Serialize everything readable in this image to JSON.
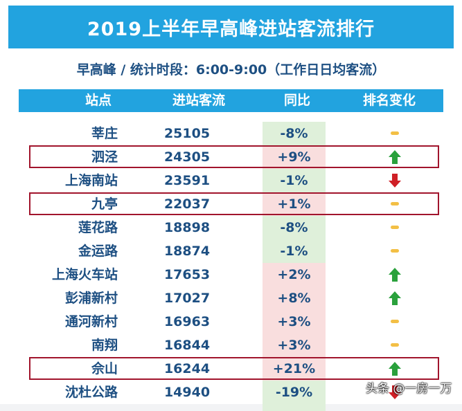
{
  "title": "2019上半年早高峰进站客流排行",
  "subtitle": "早高峰 / 统计时段：6:00-9:00（工作日日均客流）",
  "watermark": "头条 @一房一万",
  "colors": {
    "header_blue": "#22a3df",
    "text_navy": "#1d4f82",
    "increase_bg": "#f9dede",
    "decrease_bg": "#dff0da",
    "up_arrow": "#2aa13c",
    "down_arrow": "#cf1f26",
    "no_change": "#f3bf45",
    "highlight_border": "#a1142c"
  },
  "chart_data": {
    "type": "table",
    "columns": [
      "站点",
      "进站客流",
      "同比",
      "排名变化"
    ],
    "rows": [
      {
        "station": "莘庄",
        "flow": "25105",
        "yoy": "-8%",
        "rank_change": "same",
        "highlighted": false
      },
      {
        "station": "泗泾",
        "flow": "24305",
        "yoy": "+9%",
        "rank_change": "up",
        "highlighted": true
      },
      {
        "station": "上海南站",
        "flow": "23591",
        "yoy": "-1%",
        "rank_change": "down",
        "highlighted": false
      },
      {
        "station": "九亭",
        "flow": "22037",
        "yoy": "+1%",
        "rank_change": "same",
        "highlighted": true
      },
      {
        "station": "莲花路",
        "flow": "18898",
        "yoy": "-8%",
        "rank_change": "same",
        "highlighted": false
      },
      {
        "station": "金运路",
        "flow": "18874",
        "yoy": "-1%",
        "rank_change": "same",
        "highlighted": false
      },
      {
        "station": "上海火车站",
        "flow": "17653",
        "yoy": "+2%",
        "rank_change": "up",
        "highlighted": false
      },
      {
        "station": "彭浦新村",
        "flow": "17027",
        "yoy": "+8%",
        "rank_change": "up",
        "highlighted": false
      },
      {
        "station": "通河新村",
        "flow": "16963",
        "yoy": "+3%",
        "rank_change": "same",
        "highlighted": false
      },
      {
        "station": "南翔",
        "flow": "16844",
        "yoy": "+3%",
        "rank_change": "same",
        "highlighted": false
      },
      {
        "station": "佘山",
        "flow": "16244",
        "yoy": "+21%",
        "rank_change": "up",
        "highlighted": true
      },
      {
        "station": "沈杜公路",
        "flow": "14940",
        "yoy": "-19%",
        "rank_change": "down",
        "highlighted": false
      }
    ]
  }
}
